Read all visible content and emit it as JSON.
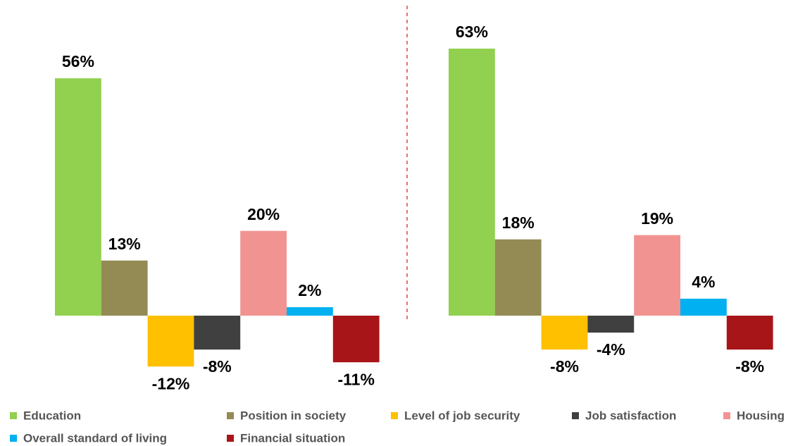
{
  "chart_data": {
    "type": "bar",
    "categories": [
      null,
      null
    ],
    "series": [
      {
        "name": "Education",
        "color": "#92d050",
        "values": [
          56,
          63
        ],
        "value_labels": [
          "56%",
          "63%"
        ]
      },
      {
        "name": "Position in society",
        "color": "#948a54",
        "values": [
          13,
          18
        ],
        "value_labels": [
          "13%",
          "18%"
        ]
      },
      {
        "name": "Level of job security",
        "color": "#ffc000",
        "values": [
          -12,
          -8
        ],
        "value_labels": [
          "-12%",
          "-8%"
        ]
      },
      {
        "name": "Job satisfaction",
        "color": "#404040",
        "values": [
          -8,
          -4
        ],
        "value_labels": [
          "-8%",
          "-4%"
        ]
      },
      {
        "name": "Housing",
        "color": "#f19391",
        "values": [
          20,
          19
        ],
        "value_labels": [
          "20%",
          "19%"
        ]
      },
      {
        "name": "Overall standard of living",
        "color": "#00b0f0",
        "values": [
          2,
          4
        ],
        "value_labels": [
          "2%",
          "4%"
        ]
      },
      {
        "name": "Financial situation",
        "color": "#a81518",
        "values": [
          -11,
          -8
        ],
        "value_labels": [
          "-11%",
          "-8%"
        ]
      }
    ]
  }
}
